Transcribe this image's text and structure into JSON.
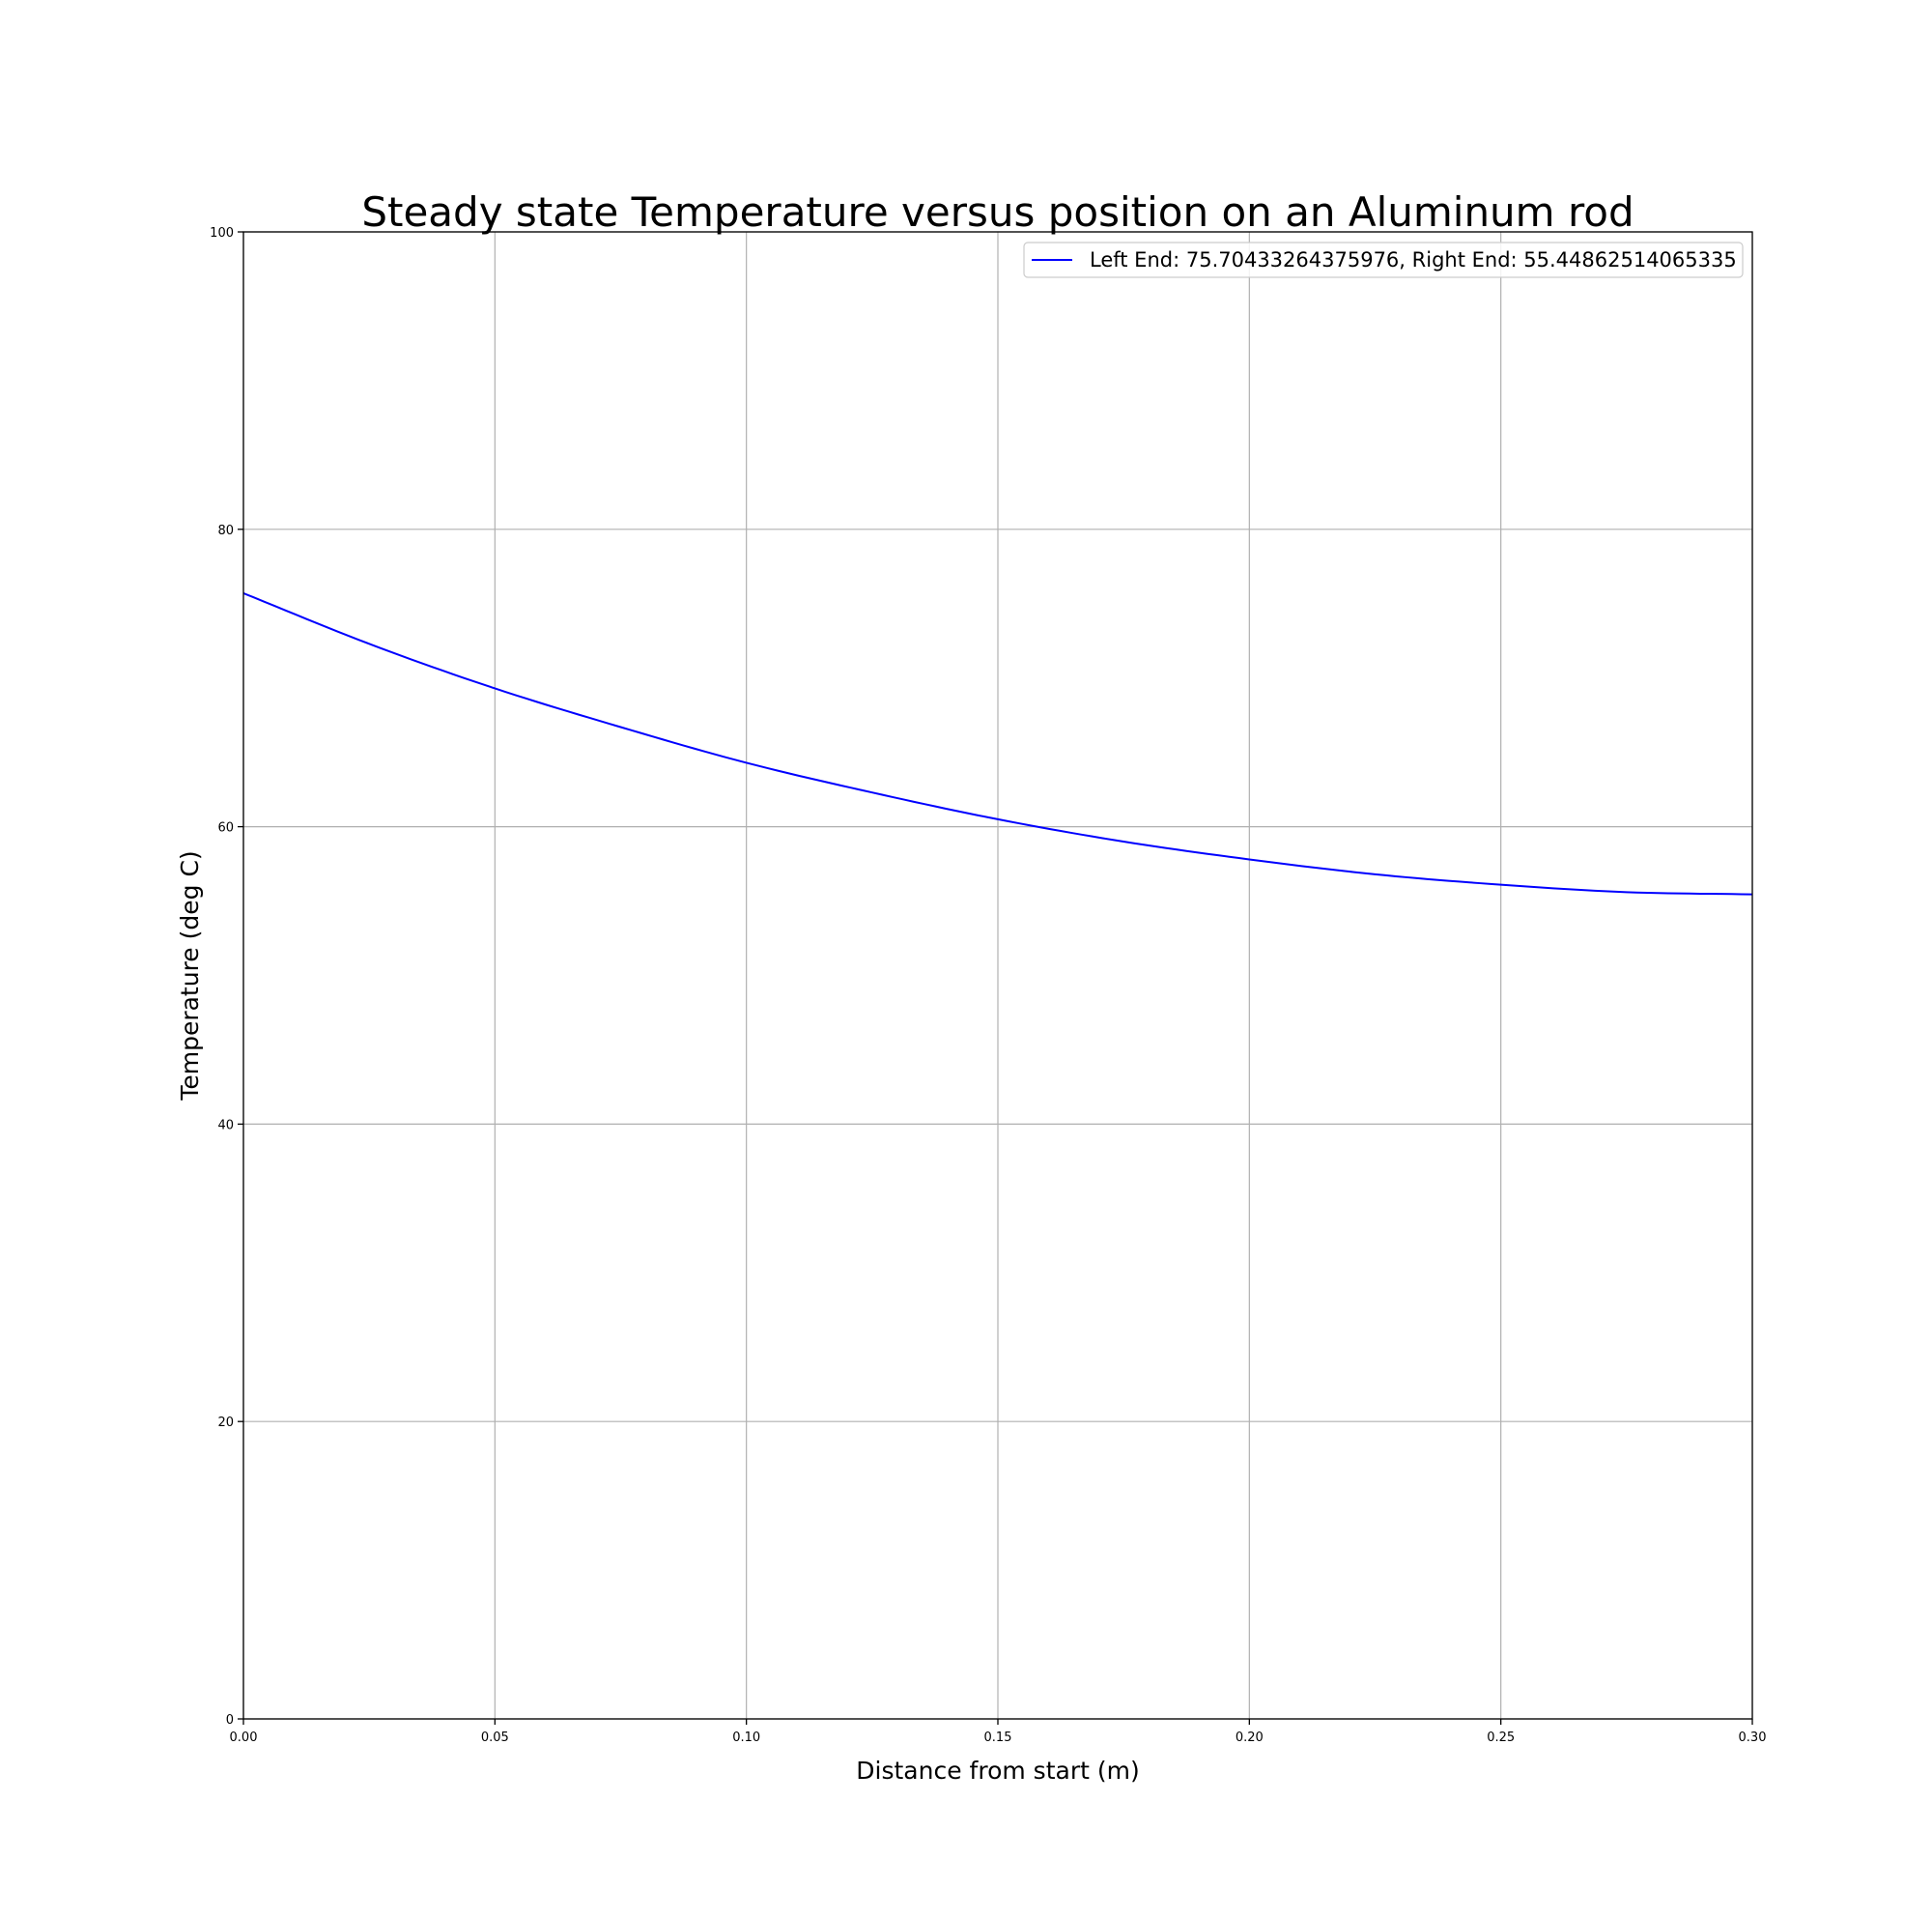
{
  "chart_data": {
    "type": "line",
    "title": "Steady state Temperature versus position on an Aluminum rod",
    "xlabel": "Distance from start (m)",
    "ylabel": "Temperature (deg C)",
    "xlim": [
      0.0,
      0.3
    ],
    "ylim": [
      0,
      100
    ],
    "x_ticks": [
      "0.00",
      "0.05",
      "0.10",
      "0.15",
      "0.20",
      "0.25",
      "0.30"
    ],
    "y_ticks": [
      "0",
      "20",
      "40",
      "60",
      "80",
      "100"
    ],
    "grid": true,
    "legend_position": "top-right",
    "series": [
      {
        "name": "Left End: 75.70433264375976, Right End: 55.44862514065335",
        "color": "#0000ff",
        "x": [
          0.0,
          0.025,
          0.05,
          0.075,
          0.1,
          0.125,
          0.15,
          0.175,
          0.2,
          0.225,
          0.25,
          0.275,
          0.3
        ],
        "y": [
          75.7,
          72.3,
          69.3,
          66.7,
          64.3,
          62.3,
          60.5,
          59.0,
          57.8,
          56.8,
          56.1,
          55.6,
          55.45
        ]
      }
    ]
  }
}
